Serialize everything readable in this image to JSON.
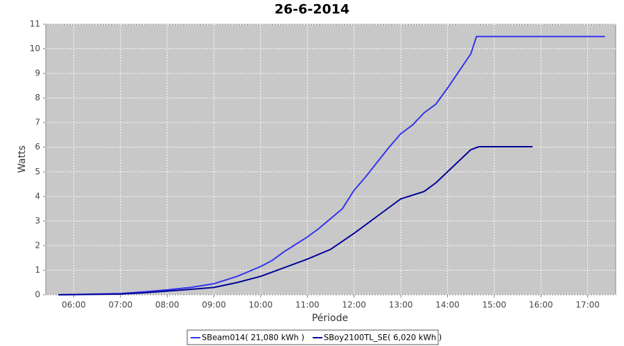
{
  "chart_data": {
    "type": "line",
    "title": "26-6-2014",
    "x_label": "Période",
    "y_label": "Watts",
    "xlim": [
      5.4,
      17.6
    ],
    "xticks": [
      {
        "value": 6,
        "label": "06:00"
      },
      {
        "value": 7,
        "label": "07:00"
      },
      {
        "value": 8,
        "label": "08:00"
      },
      {
        "value": 9,
        "label": "09:00"
      },
      {
        "value": 10,
        "label": "10:00"
      },
      {
        "value": 11,
        "label": "11:00"
      },
      {
        "value": 12,
        "label": "12:00"
      },
      {
        "value": 13,
        "label": "13:00"
      },
      {
        "value": 14,
        "label": "14:00"
      },
      {
        "value": 15,
        "label": "15:00"
      },
      {
        "value": 16,
        "label": "16:00"
      },
      {
        "value": 17,
        "label": "17:00"
      }
    ],
    "ylim": [
      0,
      11
    ],
    "yticks": [
      0,
      1,
      2,
      3,
      4,
      5,
      6,
      7,
      8,
      9,
      10,
      11
    ],
    "grid": true,
    "series": [
      {
        "name": "SBeam014( 21,080 kWh )",
        "color": "#3333ee",
        "x": [
          5.67,
          6.5,
          7,
          7.5,
          8,
          8.5,
          9,
          9.5,
          10,
          10.25,
          10.5,
          10.75,
          11,
          11.25,
          11.5,
          11.75,
          12,
          12.25,
          12.5,
          12.75,
          13,
          13.25,
          13.5,
          13.75,
          14,
          14.25,
          14.5,
          14.62,
          17.37
        ],
        "values": [
          0,
          0.03,
          0.05,
          0.12,
          0.2,
          0.3,
          0.45,
          0.75,
          1.15,
          1.4,
          1.75,
          2.05,
          2.35,
          2.7,
          3.1,
          3.5,
          4.25,
          4.8,
          5.4,
          6.0,
          6.55,
          6.9,
          7.4,
          7.75,
          8.4,
          9.1,
          9.8,
          10.5,
          10.5
        ]
      },
      {
        "name": "SBoy2100TL_SE( 6,020 kWh )",
        "color": "#000099",
        "x": [
          5.67,
          7,
          7.5,
          8,
          8.5,
          9,
          9.5,
          10,
          10.5,
          11,
          11.5,
          12,
          12.5,
          13,
          13.5,
          13.75,
          14,
          14.25,
          14.5,
          14.67,
          15.82
        ],
        "values": [
          0,
          0.03,
          0.08,
          0.15,
          0.22,
          0.3,
          0.5,
          0.75,
          1.1,
          1.45,
          1.85,
          2.5,
          3.2,
          3.9,
          4.2,
          4.55,
          5.0,
          5.45,
          5.9,
          6.02,
          6.02
        ]
      }
    ]
  }
}
